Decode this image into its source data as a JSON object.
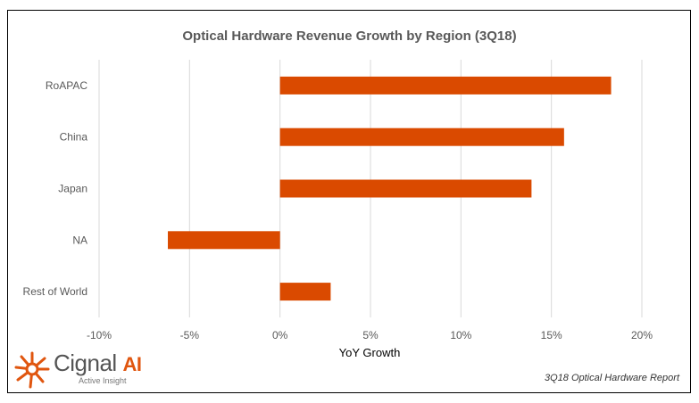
{
  "chart_data": {
    "type": "bar",
    "orientation": "horizontal",
    "title": "Optical Hardware Revenue Growth by Region (3Q18)",
    "xlabel": "YoY Growth",
    "ylabel": "",
    "categories": [
      "RoAPAC",
      "China",
      "Japan",
      "NA",
      "Rest of World"
    ],
    "values": [
      18.3,
      15.7,
      13.9,
      -6.2,
      2.8
    ],
    "unit": "%",
    "xlim": [
      -10,
      20
    ],
    "ticks": [
      -10,
      -5,
      0,
      5,
      10,
      15,
      20
    ],
    "tick_labels": [
      "-10%",
      "-5%",
      "0%",
      "5%",
      "10%",
      "15%",
      "20%"
    ],
    "grid": "vertical",
    "legend": "none",
    "bar_color": "#DA4A00"
  },
  "footer": "3Q18 Optical Hardware Report",
  "logo": {
    "name": "Cignal",
    "ai": "AI",
    "tagline": "Active Insight"
  }
}
